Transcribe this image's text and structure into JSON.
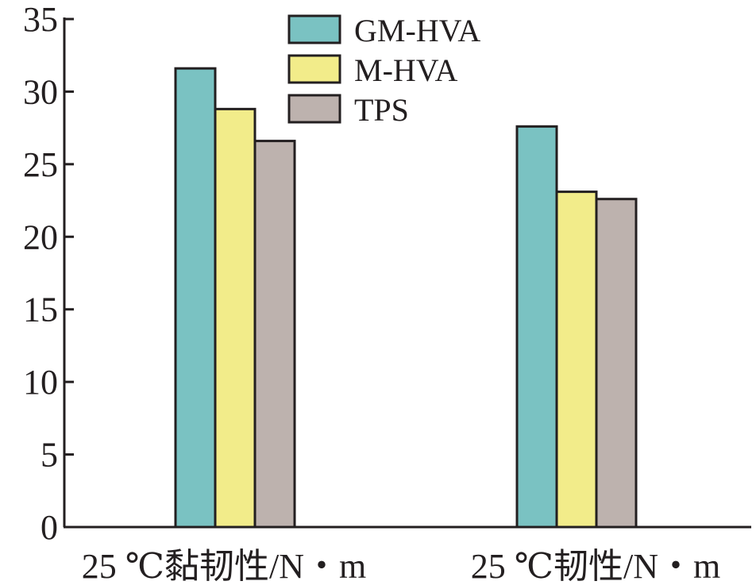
{
  "chart_data": {
    "type": "bar",
    "categories": [
      "25 ℃黏韧性/N・m",
      "25 ℃韧性/N・m"
    ],
    "series": [
      {
        "name": "GM-HVA",
        "values": [
          31.6,
          27.6
        ],
        "color": "#7ac2c2"
      },
      {
        "name": "M-HVA",
        "values": [
          28.8,
          23.1
        ],
        "color": "#f2ec8a"
      },
      {
        "name": "TPS",
        "values": [
          26.6,
          22.6
        ],
        "color": "#bdb2ae"
      }
    ],
    "yticks": [
      "0",
      "5",
      "10",
      "15",
      "20",
      "25",
      "30",
      "35"
    ],
    "ylim": [
      0,
      35
    ],
    "legend": "top-center",
    "grid": false
  }
}
